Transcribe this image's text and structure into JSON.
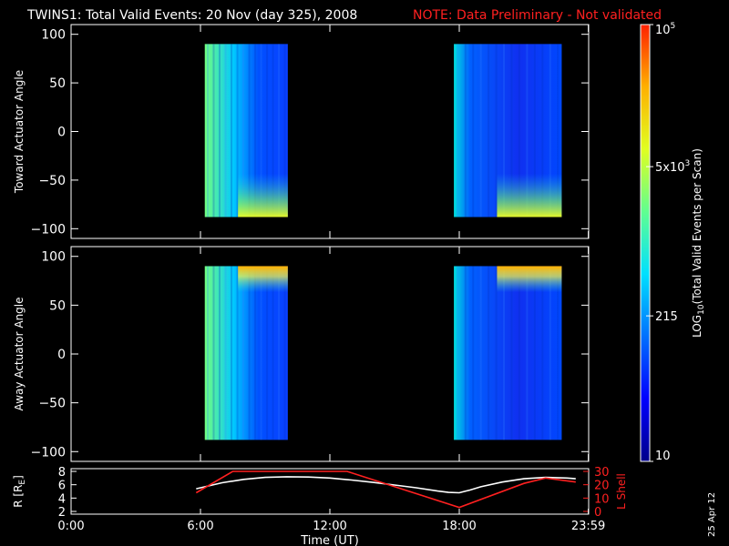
{
  "title": {
    "main": "TWINS1: Total Valid Events: 20 Nov (day 325), 2008",
    "note": "NOTE: Data Preliminary - Not validated",
    "note_color": "#ff2020"
  },
  "date_stamp": "25 Apr 12",
  "chart_data": [
    {
      "type": "heatmap",
      "ylabel": "Toward Actuator Angle",
      "ylim": [
        -110,
        110
      ],
      "yticks": [
        100,
        50,
        0,
        -50,
        -100
      ],
      "xlim": [
        0,
        24
      ],
      "data_bands": [
        {
          "x": [
            6.2,
            10.05
          ],
          "y": [
            -88,
            90
          ],
          "pattern": "bottom-hot"
        },
        {
          "x": [
            17.75,
            22.75
          ],
          "y": [
            -88,
            90
          ],
          "pattern": "bottom-hot"
        }
      ]
    },
    {
      "type": "heatmap",
      "ylabel": "Away Actuator Angle",
      "ylim": [
        -110,
        110
      ],
      "yticks": [
        100,
        50,
        0,
        -50,
        -100
      ],
      "xlim": [
        0,
        24
      ],
      "data_bands": [
        {
          "x": [
            6.2,
            10.05
          ],
          "y": [
            -88,
            90
          ],
          "pattern": "top-hot"
        },
        {
          "x": [
            17.75,
            22.75
          ],
          "y": [
            -88,
            90
          ],
          "pattern": "top-hot"
        }
      ]
    },
    {
      "type": "line",
      "ylabel": "R [R",
      "ylabel_sub": "E",
      "ylabel_close": "]",
      "ylim": [
        2,
        8
      ],
      "yticks": [
        2,
        4,
        6,
        8
      ],
      "y2label": "L Shell",
      "y2lim": [
        0,
        30
      ],
      "y2ticks": [
        0,
        10,
        20,
        30
      ],
      "xlabel": "Time (UT)",
      "xticks": [
        {
          "value": 0,
          "label": "0:00"
        },
        {
          "value": 6,
          "label": "6:00"
        },
        {
          "value": 12,
          "label": "12:00"
        },
        {
          "value": 18,
          "label": "18:00"
        },
        {
          "value": 23.983,
          "label": "23:59"
        }
      ],
      "series": [
        {
          "color": "#ffffff",
          "axis": "left",
          "x": [
            5.8,
            7,
            8,
            9,
            10,
            11,
            12,
            13,
            14,
            15,
            16,
            17,
            17.5,
            18,
            18.5,
            19,
            20,
            21,
            22,
            23,
            23.4
          ],
          "y": [
            5.4,
            6.3,
            6.8,
            7.1,
            7.2,
            7.15,
            7.0,
            6.7,
            6.35,
            5.95,
            5.55,
            5.05,
            4.85,
            4.8,
            5.2,
            5.7,
            6.4,
            6.9,
            7.1,
            7.0,
            6.9
          ]
        },
        {
          "color": "#ff2020",
          "axis": "right",
          "x": [
            5.8,
            7.5,
            12.8,
            18,
            21,
            22,
            23.4
          ],
          "y": [
            14,
            30,
            30,
            3,
            21,
            25,
            22
          ]
        }
      ]
    }
  ],
  "colorbar": {
    "label": "LOG",
    "label_sub": "10",
    "label_rest": "(Total Valid Events per Scan)",
    "ticks": [
      {
        "label": "10",
        "value": 10
      },
      {
        "label": "215",
        "value": 215
      },
      {
        "label": "5x10",
        "sup": "3",
        "value": 5000
      },
      {
        "label": "10",
        "sup": "5",
        "value": 100000
      }
    ],
    "min": 10,
    "max": 100000,
    "colors": [
      "#00008a",
      "#0000ff",
      "#0070ff",
      "#00e0ff",
      "#60ff90",
      "#e0ff20",
      "#ffb000",
      "#ff2000"
    ]
  }
}
